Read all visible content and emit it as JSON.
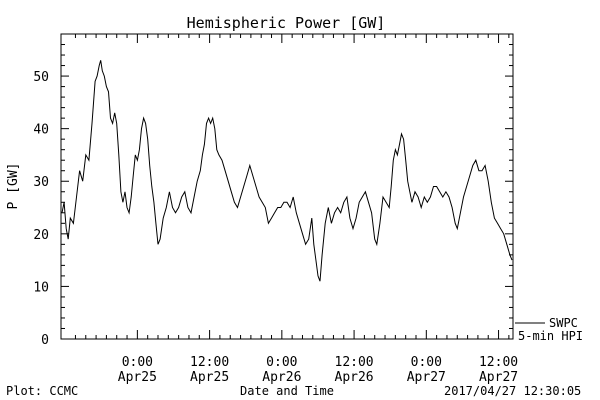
{
  "chart_data": {
    "type": "line",
    "title": "Hemispheric Power [GW]",
    "ylabel": "P [GW]",
    "xlabel": "Date and Time",
    "ylim": [
      0,
      58
    ],
    "xlim": [
      -7.4,
      36.4
    ],
    "yticks": [
      0,
      10,
      20,
      30,
      40,
      50
    ],
    "xticks": [
      {
        "x": 0,
        "time": "0:00",
        "date": "Apr25"
      },
      {
        "x": 7,
        "time": "12:00",
        "date": "Apr25"
      },
      {
        "x": 14,
        "time": "0:00",
        "date": "Apr26"
      },
      {
        "x": 21,
        "time": "12:00",
        "date": "Apr26"
      },
      {
        "x": 28,
        "time": "0:00",
        "date": "Apr27"
      },
      {
        "x": 35,
        "time": "12:00",
        "date": "Apr27"
      }
    ],
    "x_units": "hours relative to 2017/04/25 0:00 (tick spacing shown as 12 hours)",
    "series": [
      {
        "name": "SWPC",
        "color": "#000000",
        "points": [
          [
            -7.3,
            24
          ],
          [
            -7.1,
            26
          ],
          [
            -6.9,
            21
          ],
          [
            -6.7,
            19
          ],
          [
            -6.5,
            23
          ],
          [
            -6.2,
            22
          ],
          [
            -5.9,
            27
          ],
          [
            -5.6,
            32
          ],
          [
            -5.3,
            30
          ],
          [
            -5.0,
            35
          ],
          [
            -4.7,
            34
          ],
          [
            -4.4,
            41
          ],
          [
            -4.1,
            49
          ],
          [
            -3.9,
            50
          ],
          [
            -3.7,
            52
          ],
          [
            -3.55,
            53
          ],
          [
            -3.4,
            51
          ],
          [
            -3.2,
            50
          ],
          [
            -3.0,
            48
          ],
          [
            -2.8,
            47
          ],
          [
            -2.6,
            42
          ],
          [
            -2.4,
            41
          ],
          [
            -2.2,
            43
          ],
          [
            -2.0,
            41
          ],
          [
            -1.8,
            35
          ],
          [
            -1.6,
            28
          ],
          [
            -1.4,
            26
          ],
          [
            -1.2,
            28
          ],
          [
            -1.0,
            25
          ],
          [
            -0.8,
            24
          ],
          [
            -0.6,
            27
          ],
          [
            -0.4,
            31
          ],
          [
            -0.2,
            35
          ],
          [
            0.0,
            34
          ],
          [
            0.2,
            36
          ],
          [
            0.4,
            40
          ],
          [
            0.6,
            42
          ],
          [
            0.8,
            41
          ],
          [
            1.0,
            38
          ],
          [
            1.2,
            33
          ],
          [
            1.4,
            29
          ],
          [
            1.6,
            26
          ],
          [
            1.8,
            22
          ],
          [
            2.0,
            18
          ],
          [
            2.2,
            19
          ],
          [
            2.5,
            23
          ],
          [
            2.8,
            25
          ],
          [
            3.1,
            28
          ],
          [
            3.4,
            25
          ],
          [
            3.7,
            24
          ],
          [
            4.0,
            25
          ],
          [
            4.3,
            27
          ],
          [
            4.6,
            28
          ],
          [
            4.9,
            25
          ],
          [
            5.2,
            24
          ],
          [
            5.5,
            27
          ],
          [
            5.8,
            30
          ],
          [
            6.1,
            32
          ],
          [
            6.3,
            35
          ],
          [
            6.5,
            37
          ],
          [
            6.7,
            41
          ],
          [
            6.9,
            42
          ],
          [
            7.1,
            41
          ],
          [
            7.3,
            42
          ],
          [
            7.5,
            40
          ],
          [
            7.7,
            36
          ],
          [
            7.9,
            35
          ],
          [
            8.2,
            34
          ],
          [
            8.5,
            32
          ],
          [
            8.8,
            30
          ],
          [
            9.1,
            28
          ],
          [
            9.4,
            26
          ],
          [
            9.7,
            25
          ],
          [
            10.0,
            27
          ],
          [
            10.3,
            29
          ],
          [
            10.6,
            31
          ],
          [
            10.9,
            33
          ],
          [
            11.2,
            31
          ],
          [
            11.5,
            29
          ],
          [
            11.8,
            27
          ],
          [
            12.1,
            26
          ],
          [
            12.4,
            25
          ],
          [
            12.7,
            22
          ],
          [
            13.0,
            23
          ],
          [
            13.3,
            24
          ],
          [
            13.6,
            25
          ],
          [
            13.9,
            25
          ],
          [
            14.2,
            26
          ],
          [
            14.5,
            26
          ],
          [
            14.8,
            25
          ],
          [
            15.1,
            27
          ],
          [
            15.4,
            24
          ],
          [
            15.7,
            22
          ],
          [
            16.0,
            20
          ],
          [
            16.3,
            18
          ],
          [
            16.6,
            19
          ],
          [
            16.9,
            23
          ],
          [
            17.1,
            18
          ],
          [
            17.3,
            15
          ],
          [
            17.5,
            12
          ],
          [
            17.7,
            11
          ],
          [
            17.9,
            16
          ],
          [
            18.2,
            22
          ],
          [
            18.5,
            25
          ],
          [
            18.8,
            22
          ],
          [
            19.1,
            24
          ],
          [
            19.4,
            25
          ],
          [
            19.7,
            24
          ],
          [
            20.0,
            26
          ],
          [
            20.3,
            27
          ],
          [
            20.6,
            23
          ],
          [
            20.9,
            21
          ],
          [
            21.2,
            23
          ],
          [
            21.5,
            26
          ],
          [
            21.8,
            27
          ],
          [
            22.1,
            28
          ],
          [
            22.4,
            26
          ],
          [
            22.7,
            24
          ],
          [
            23.0,
            19
          ],
          [
            23.2,
            18
          ],
          [
            23.5,
            22
          ],
          [
            23.8,
            27
          ],
          [
            24.1,
            26
          ],
          [
            24.4,
            25
          ],
          [
            24.6,
            29
          ],
          [
            24.8,
            34
          ],
          [
            25.0,
            36
          ],
          [
            25.2,
            35
          ],
          [
            25.4,
            37
          ],
          [
            25.6,
            39
          ],
          [
            25.8,
            38
          ],
          [
            26.0,
            34
          ],
          [
            26.2,
            30
          ],
          [
            26.4,
            28
          ],
          [
            26.6,
            26
          ],
          [
            26.9,
            28
          ],
          [
            27.2,
            27
          ],
          [
            27.5,
            25
          ],
          [
            27.8,
            27
          ],
          [
            28.1,
            26
          ],
          [
            28.4,
            27
          ],
          [
            28.7,
            29
          ],
          [
            29.0,
            29
          ],
          [
            29.3,
            28
          ],
          [
            29.6,
            27
          ],
          [
            29.9,
            28
          ],
          [
            30.2,
            27
          ],
          [
            30.5,
            25
          ],
          [
            30.8,
            22
          ],
          [
            31.0,
            21
          ],
          [
            31.3,
            24
          ],
          [
            31.6,
            27
          ],
          [
            31.9,
            29
          ],
          [
            32.2,
            31
          ],
          [
            32.5,
            33
          ],
          [
            32.8,
            34
          ],
          [
            33.1,
            32
          ],
          [
            33.4,
            32
          ],
          [
            33.7,
            33
          ],
          [
            34.0,
            30
          ],
          [
            34.3,
            26
          ],
          [
            34.6,
            23
          ],
          [
            34.9,
            22
          ],
          [
            35.2,
            21
          ],
          [
            35.5,
            20
          ],
          [
            35.8,
            18
          ],
          [
            36.1,
            16
          ],
          [
            36.3,
            15
          ]
        ]
      },
      {
        "name": "5-min HPI",
        "color": "#000000",
        "points": []
      }
    ]
  },
  "footer": {
    "left": "Plot: CCMC",
    "right": "2017/04/27 12:30:05"
  }
}
